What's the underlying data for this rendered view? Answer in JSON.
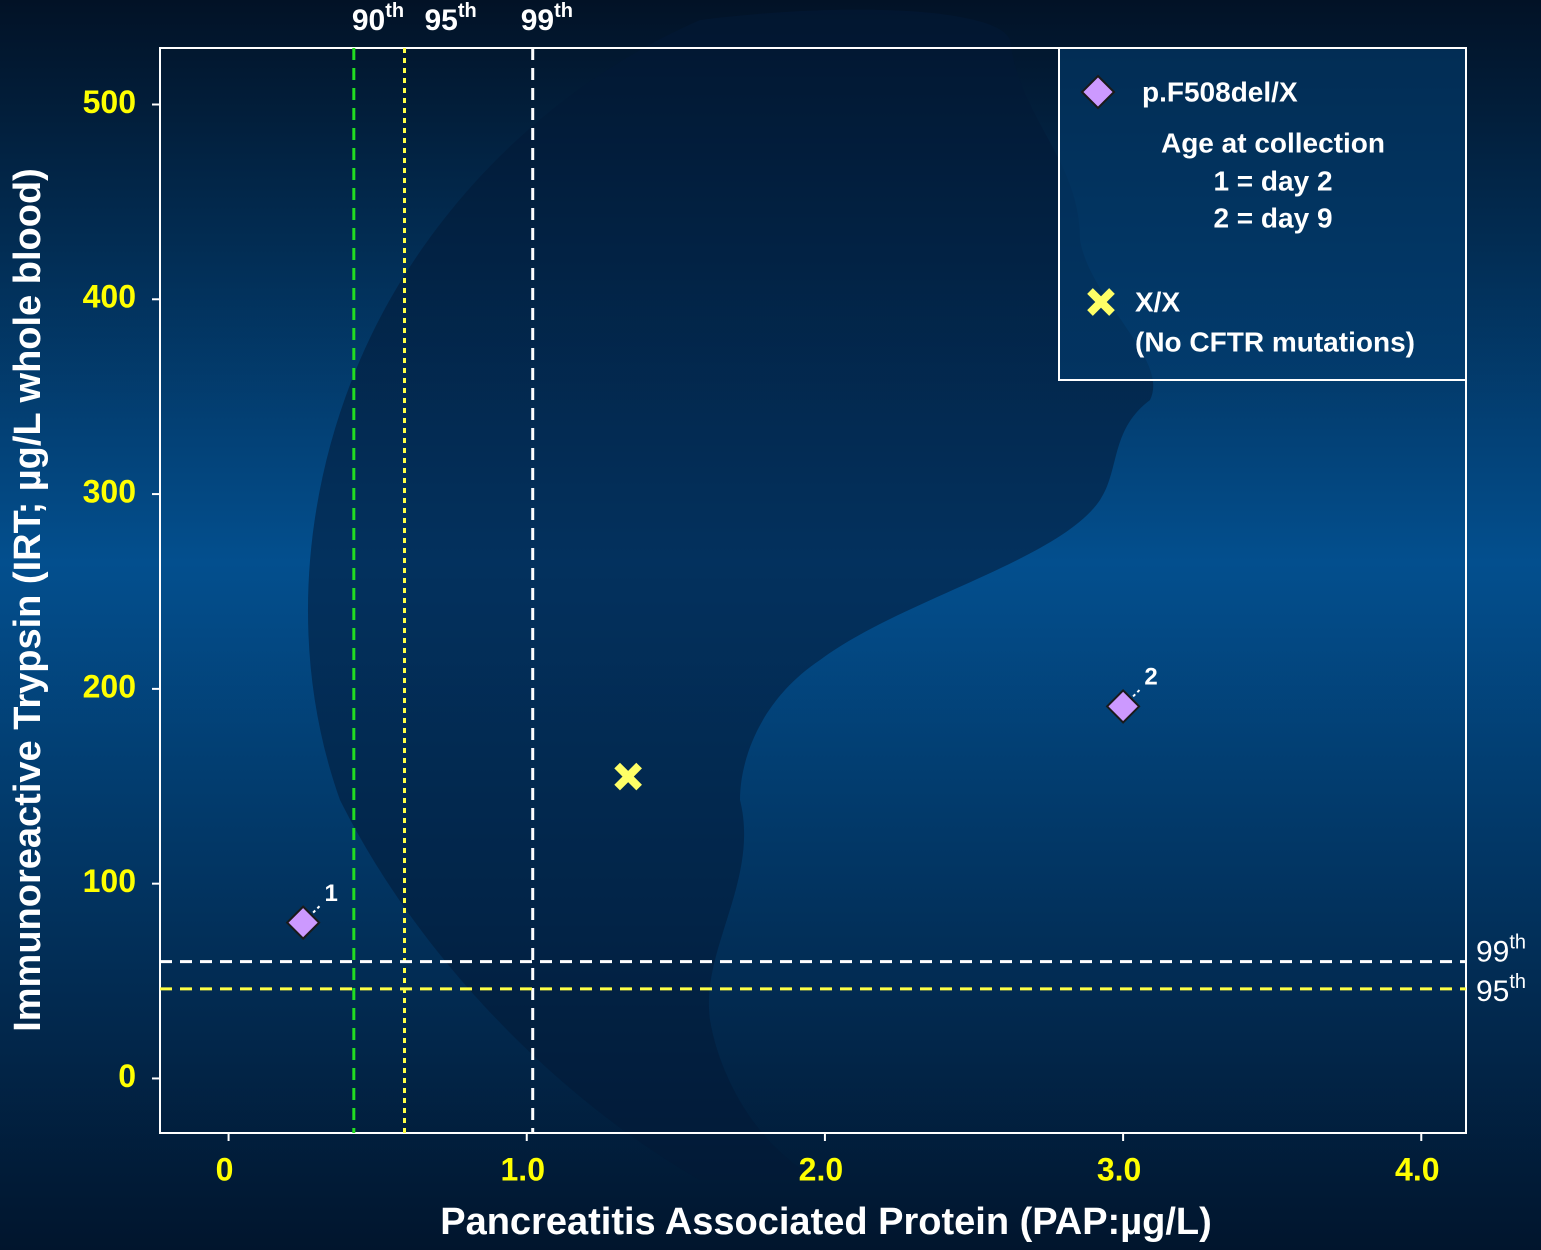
{
  "chart_data": {
    "type": "scatter",
    "x_label": "Pancreatitis Associated Protein (PAP:µg/L)",
    "y_label": "Immunoreactive Trypsin (IRT; µg/L whole blood)",
    "xlim": [
      -0.23,
      4.15
    ],
    "ylim": [
      -28,
      529
    ],
    "xticks": [
      0,
      {
        "value": 1,
        "label": "1.0"
      },
      {
        "value": 2,
        "label": "2.0"
      },
      {
        "value": 3,
        "label": "3.0"
      },
      {
        "value": 4,
        "label": "4.0"
      }
    ],
    "yticks": [
      0,
      100,
      200,
      300,
      400,
      500
    ],
    "series": [
      {
        "name": "p.F508del/X",
        "marker": "diamond",
        "color": "#cc99ff",
        "x": [
          0.25,
          3.0
        ],
        "values": [
          80,
          191
        ],
        "point_labels": [
          "1",
          "2"
        ]
      },
      {
        "name": "X/X",
        "description": "(No CFTR mutations)",
        "marker": "x",
        "color": "#ffff66",
        "x": [
          1.34
        ],
        "values": [
          155
        ]
      }
    ],
    "legend_notes": [
      "Age at collection",
      "1 = day 2",
      "2 = day 9"
    ],
    "reference_lines": [
      {
        "axis": "x",
        "value": 0.42,
        "color": "#22dd22",
        "style": "dashed",
        "label": "90",
        "label_sup": "th"
      },
      {
        "axis": "x",
        "value": 0.59,
        "color": "#ffff44",
        "style": "dotted",
        "label": "95",
        "label_sup": "th"
      },
      {
        "axis": "x",
        "value": 1.02,
        "color": "#ffffff",
        "style": "dashed",
        "label": "99",
        "label_sup": "th"
      },
      {
        "axis": "y",
        "value": 60,
        "color": "#ffffff",
        "style": "dashed",
        "label": "99",
        "label_sup": "th"
      },
      {
        "axis": "y",
        "value": 46,
        "color": "#ffff44",
        "style": "dashed",
        "label": "95",
        "label_sup": "th"
      }
    ]
  }
}
